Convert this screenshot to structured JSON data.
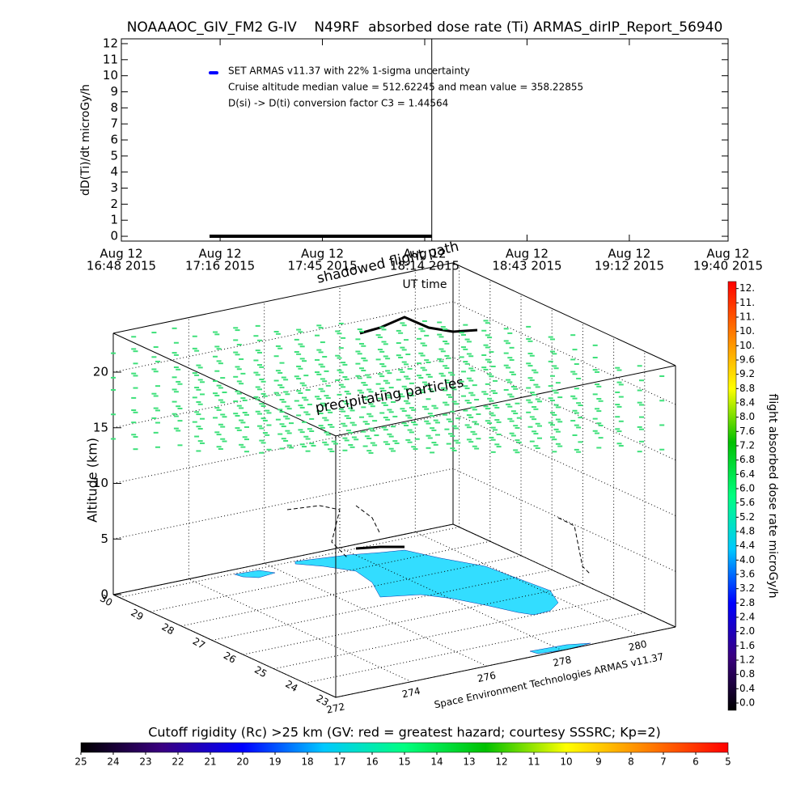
{
  "chart_data": [
    {
      "type": "line",
      "title": "NOAAAOC_GIV_FM2 G-IV    N49RF  absorbed dose rate (Ti) ARMAS_dirIP_Report_56940",
      "ylabel": "dD(Ti)/dt microGy/h",
      "xlabel": "UT time",
      "xlim": [
        "2015-08-12 16:48",
        "2015-08-12 19:40"
      ],
      "xticks": [
        {
          "value": "2015-08-12 16:48",
          "label": [
            "Aug 12",
            "16:48 2015"
          ]
        },
        {
          "value": "2015-08-12 17:16",
          "label": [
            "Aug 12",
            "17:16 2015"
          ]
        },
        {
          "value": "2015-08-12 17:45",
          "label": [
            "Aug 12",
            "17:45 2015"
          ]
        },
        {
          "value": "2015-08-12 18:14",
          "label": [
            "Aug 12",
            "18:14 2015"
          ]
        },
        {
          "value": "2015-08-12 18:43",
          "label": [
            "Aug 12",
            "18:43 2015"
          ]
        },
        {
          "value": "2015-08-12 19:12",
          "label": [
            "Aug 12",
            "19:12 2015"
          ]
        },
        {
          "value": "2015-08-12 19:40",
          "label": [
            "Aug 12",
            "19:40 2015"
          ]
        }
      ],
      "ylim": [
        -0.3,
        12.3
      ],
      "yticks": [
        0,
        1,
        2,
        3,
        4,
        5,
        6,
        7,
        8,
        9,
        10,
        11,
        12
      ],
      "legend": {
        "label": "SET ARMAS v11.37 with 22% 1-sigma uncertainty",
        "color": "#0000ff"
      },
      "annotations": [
        "Cruise altitude median value = 512.62245 and mean value = 358.22855",
        "D(si) -> D(ti) conversion factor C3 = 1.44564"
      ],
      "coverage": {
        "x": [
          "2015-08-12 17:13",
          "2015-08-12 18:16"
        ],
        "values": [
          0,
          0
        ],
        "color": "#000000"
      },
      "cursor_x": "2015-08-12 18:16"
    },
    {
      "type": "box3d",
      "zlabel": "Altitude (km)",
      "zlim": [
        0,
        23.5
      ],
      "zticks": [
        0,
        5,
        10,
        15,
        20
      ],
      "ylim": [
        23,
        30.2
      ],
      "yticks": [
        23,
        24,
        25,
        26,
        27,
        28,
        29,
        30
      ],
      "xlim": [
        272,
        281
      ],
      "xticks": [
        272,
        274,
        276,
        278,
        280
      ],
      "annotations": [
        "precipitating particles",
        "shadowed flight path",
        "Space Environment Technologies ARMAS v11.37"
      ],
      "particle_color": "#3ee07a",
      "land_color": "#33ddff"
    },
    {
      "type": "colorbar",
      "label": "flight absorbed dose rate microGy/h",
      "lim": [
        0,
        12
      ],
      "ticks": [
        {
          "value": 0,
          "label": "0.0"
        },
        0.4,
        0.8,
        1.2,
        1.6,
        {
          "value": 2,
          "label": "2.0"
        },
        2.4,
        2.8,
        3.2,
        3.6,
        {
          "value": 4,
          "label": "4.0"
        },
        4.4,
        4.8,
        5.2,
        5.6,
        {
          "value": 6,
          "label": "6.0"
        },
        6.4,
        6.8,
        7.2,
        7.6,
        {
          "value": 8,
          "label": "8.0"
        },
        8.4,
        8.8,
        9.2,
        9.6,
        {
          "value": 10,
          "label": "10."
        },
        {
          "value": 10.4,
          "label": "10."
        },
        {
          "value": 10.8,
          "label": "11."
        },
        {
          "value": 11.2,
          "label": "11."
        },
        {
          "value": 11.6,
          "label": "12."
        }
      ],
      "colormap": [
        "#000000",
        "#3a0080",
        "#0000ff",
        "#00c8ff",
        "#00ff80",
        "#00c000",
        "#ffff00",
        "#ff8000",
        "#ff0000"
      ]
    },
    {
      "type": "colorbar",
      "label": "Cutoff rigidity (Rc) >25 km (GV: red = greatest hazard; courtesy SSSRC; Kp=2)",
      "lim": [
        25,
        5
      ],
      "ticks": [
        25,
        24,
        23,
        22,
        21,
        20,
        19,
        18,
        17,
        16,
        15,
        14,
        13,
        12,
        11,
        10,
        9,
        8,
        7,
        6,
        5
      ],
      "colormap": [
        "#000000",
        "#3a0080",
        "#0000ff",
        "#00c8ff",
        "#00ff80",
        "#00c000",
        "#ffff00",
        "#ff8000",
        "#ff0000"
      ]
    }
  ]
}
